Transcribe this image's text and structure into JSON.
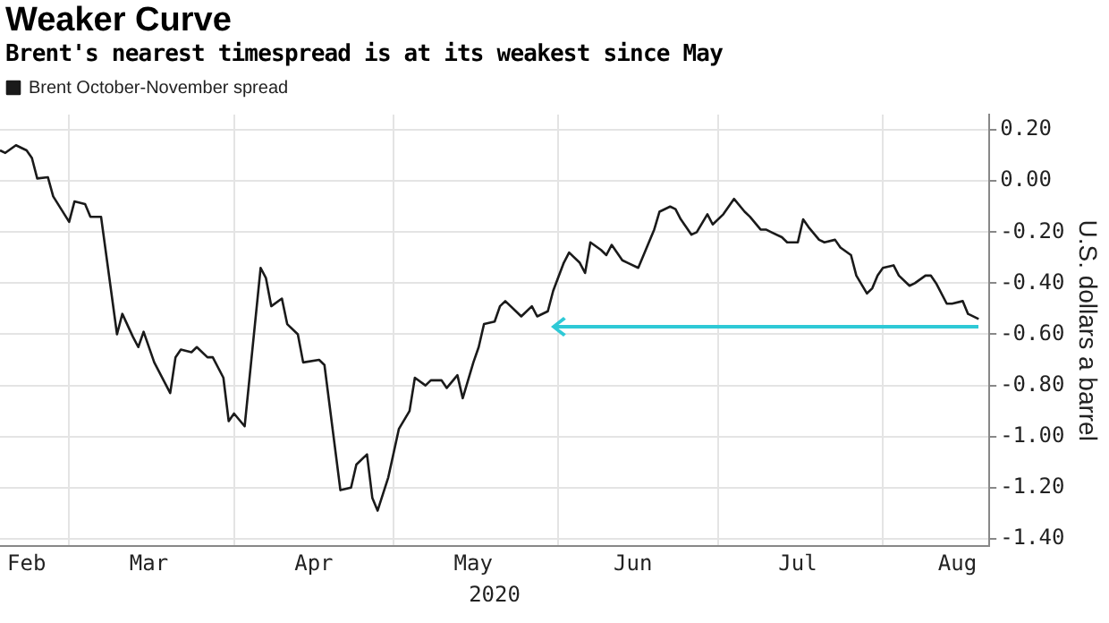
{
  "chart_data": {
    "type": "line",
    "title": "Weaker Curve",
    "subtitle": "Brent's nearest timespread is at its weakest since May",
    "xlabel": "2020",
    "ylabel": "U.S. dollars a barrel",
    "x": [
      "2020-02-17",
      "2020-02-18",
      "2020-02-20",
      "2020-02-22",
      "2020-02-23",
      "2020-02-24",
      "2020-02-26",
      "2020-02-27",
      "2020-03-01",
      "2020-03-02",
      "2020-03-04",
      "2020-03-05",
      "2020-03-07",
      "2020-03-10",
      "2020-03-11",
      "2020-03-13",
      "2020-03-14",
      "2020-03-15",
      "2020-03-17",
      "2020-03-20",
      "2020-03-21",
      "2020-03-22",
      "2020-03-24",
      "2020-03-25",
      "2020-03-27",
      "2020-03-28",
      "2020-03-30",
      "2020-03-31",
      "2020-04-01",
      "2020-04-03",
      "2020-04-06",
      "2020-04-07",
      "2020-04-08",
      "2020-04-10",
      "2020-04-11",
      "2020-04-13",
      "2020-04-14",
      "2020-04-17",
      "2020-04-18",
      "2020-04-21",
      "2020-04-23",
      "2020-04-24",
      "2020-04-26",
      "2020-04-27",
      "2020-04-28",
      "2020-04-30",
      "2020-05-02",
      "2020-05-04",
      "2020-05-05",
      "2020-05-07",
      "2020-05-08",
      "2020-05-10",
      "2020-05-11",
      "2020-05-13",
      "2020-05-14",
      "2020-05-16",
      "2020-05-17",
      "2020-05-18",
      "2020-05-20",
      "2020-05-21",
      "2020-05-22",
      "2020-05-24",
      "2020-05-25",
      "2020-05-27",
      "2020-05-28",
      "2020-05-30",
      "2020-05-31",
      "2020-06-02",
      "2020-06-03",
      "2020-06-05",
      "2020-06-06",
      "2020-06-07",
      "2020-06-09",
      "2020-06-10",
      "2020-06-11",
      "2020-06-13",
      "2020-06-14",
      "2020-06-16",
      "2020-06-17",
      "2020-06-19",
      "2020-06-20",
      "2020-06-22",
      "2020-06-23",
      "2020-06-24",
      "2020-06-26",
      "2020-06-27",
      "2020-06-29",
      "2020-06-30",
      "2020-07-02",
      "2020-07-04",
      "2020-07-06",
      "2020-07-07",
      "2020-07-09",
      "2020-07-10",
      "2020-07-11",
      "2020-07-13",
      "2020-07-14",
      "2020-07-16",
      "2020-07-17",
      "2020-07-18",
      "2020-07-20",
      "2020-07-21",
      "2020-07-23",
      "2020-07-24",
      "2020-07-26",
      "2020-07-27",
      "2020-07-29",
      "2020-07-30",
      "2020-07-31",
      "2020-08-01",
      "2020-08-03",
      "2020-08-04",
      "2020-08-06",
      "2020-08-07",
      "2020-08-09",
      "2020-08-10",
      "2020-08-11",
      "2020-08-13",
      "2020-08-14",
      "2020-08-16",
      "2020-08-17",
      "2020-08-19"
    ],
    "series": [
      {
        "name": "Brent October-November spread",
        "color": "#1a1a1a",
        "values": [
          0.12,
          0.11,
          0.14,
          0.12,
          0.09,
          0.01,
          0.015,
          -0.06,
          -0.16,
          -0.08,
          -0.09,
          -0.14,
          -0.14,
          -0.6,
          -0.52,
          -0.61,
          -0.65,
          -0.59,
          -0.71,
          -0.83,
          -0.69,
          -0.66,
          -0.67,
          -0.65,
          -0.69,
          -0.69,
          -0.77,
          -0.94,
          -0.91,
          -0.96,
          -0.34,
          -0.38,
          -0.49,
          -0.46,
          -0.56,
          -0.6,
          -0.71,
          -0.7,
          -0.72,
          -1.21,
          -1.2,
          -1.11,
          -1.07,
          -1.24,
          -1.29,
          -1.16,
          -0.97,
          -0.9,
          -0.77,
          -0.8,
          -0.78,
          -0.78,
          -0.81,
          -0.76,
          -0.85,
          -0.71,
          -0.65,
          -0.56,
          -0.55,
          -0.49,
          -0.47,
          -0.51,
          -0.53,
          -0.49,
          -0.53,
          -0.51,
          -0.43,
          -0.32,
          -0.28,
          -0.32,
          -0.36,
          -0.24,
          -0.27,
          -0.29,
          -0.25,
          -0.31,
          -0.32,
          -0.34,
          -0.29,
          -0.19,
          -0.12,
          -0.1,
          -0.11,
          -0.15,
          -0.21,
          -0.2,
          -0.13,
          -0.17,
          -0.13,
          -0.07,
          -0.12,
          -0.14,
          -0.19,
          -0.19,
          -0.2,
          -0.22,
          -0.24,
          -0.24,
          -0.15,
          -0.18,
          -0.23,
          -0.24,
          -0.23,
          -0.26,
          -0.29,
          -0.37,
          -0.44,
          -0.42,
          -0.37,
          -0.34,
          -0.33,
          -0.37,
          -0.41,
          -0.4,
          -0.37,
          -0.37,
          -0.4,
          -0.48,
          -0.48,
          -0.47,
          -0.52,
          -0.54
        ]
      }
    ],
    "xlim": [
      "2020-02-17",
      "2020-08-21"
    ],
    "xticks": [
      {
        "value": "2020-02-22",
        "label": "Feb"
      },
      {
        "value": "2020-03-01",
        "label": null
      },
      {
        "value": "2020-03-16",
        "label": "Mar"
      },
      {
        "value": "2020-04-01",
        "label": null
      },
      {
        "value": "2020-04-16",
        "label": "Apr"
      },
      {
        "value": "2020-05-01",
        "label": null
      },
      {
        "value": "2020-05-16",
        "label": "May"
      },
      {
        "value": "2020-06-01",
        "label": null
      },
      {
        "value": "2020-06-15",
        "label": "Jun"
      },
      {
        "value": "2020-07-01",
        "label": null
      },
      {
        "value": "2020-07-16",
        "label": "Jul"
      },
      {
        "value": "2020-08-01",
        "label": null
      },
      {
        "value": "2020-08-15",
        "label": "Aug"
      }
    ],
    "ylim": [
      -1.43,
      0.26
    ],
    "yticks": [
      {
        "value": 0.2,
        "label": "0.20"
      },
      {
        "value": 0,
        "label": "0.00"
      },
      {
        "value": -0.2,
        "label": "-0.20"
      },
      {
        "value": -0.4,
        "label": "-0.40"
      },
      {
        "value": -0.6,
        "label": "-0.60"
      },
      {
        "value": -0.8,
        "label": "-0.80"
      },
      {
        "value": -1,
        "label": "-1.00"
      },
      {
        "value": -1.2,
        "label": "-1.20"
      },
      {
        "value": -1.4,
        "label": "-1.40"
      }
    ],
    "grid": true,
    "legend": "top left",
    "marker": "none",
    "line_style": "solid"
  }
}
